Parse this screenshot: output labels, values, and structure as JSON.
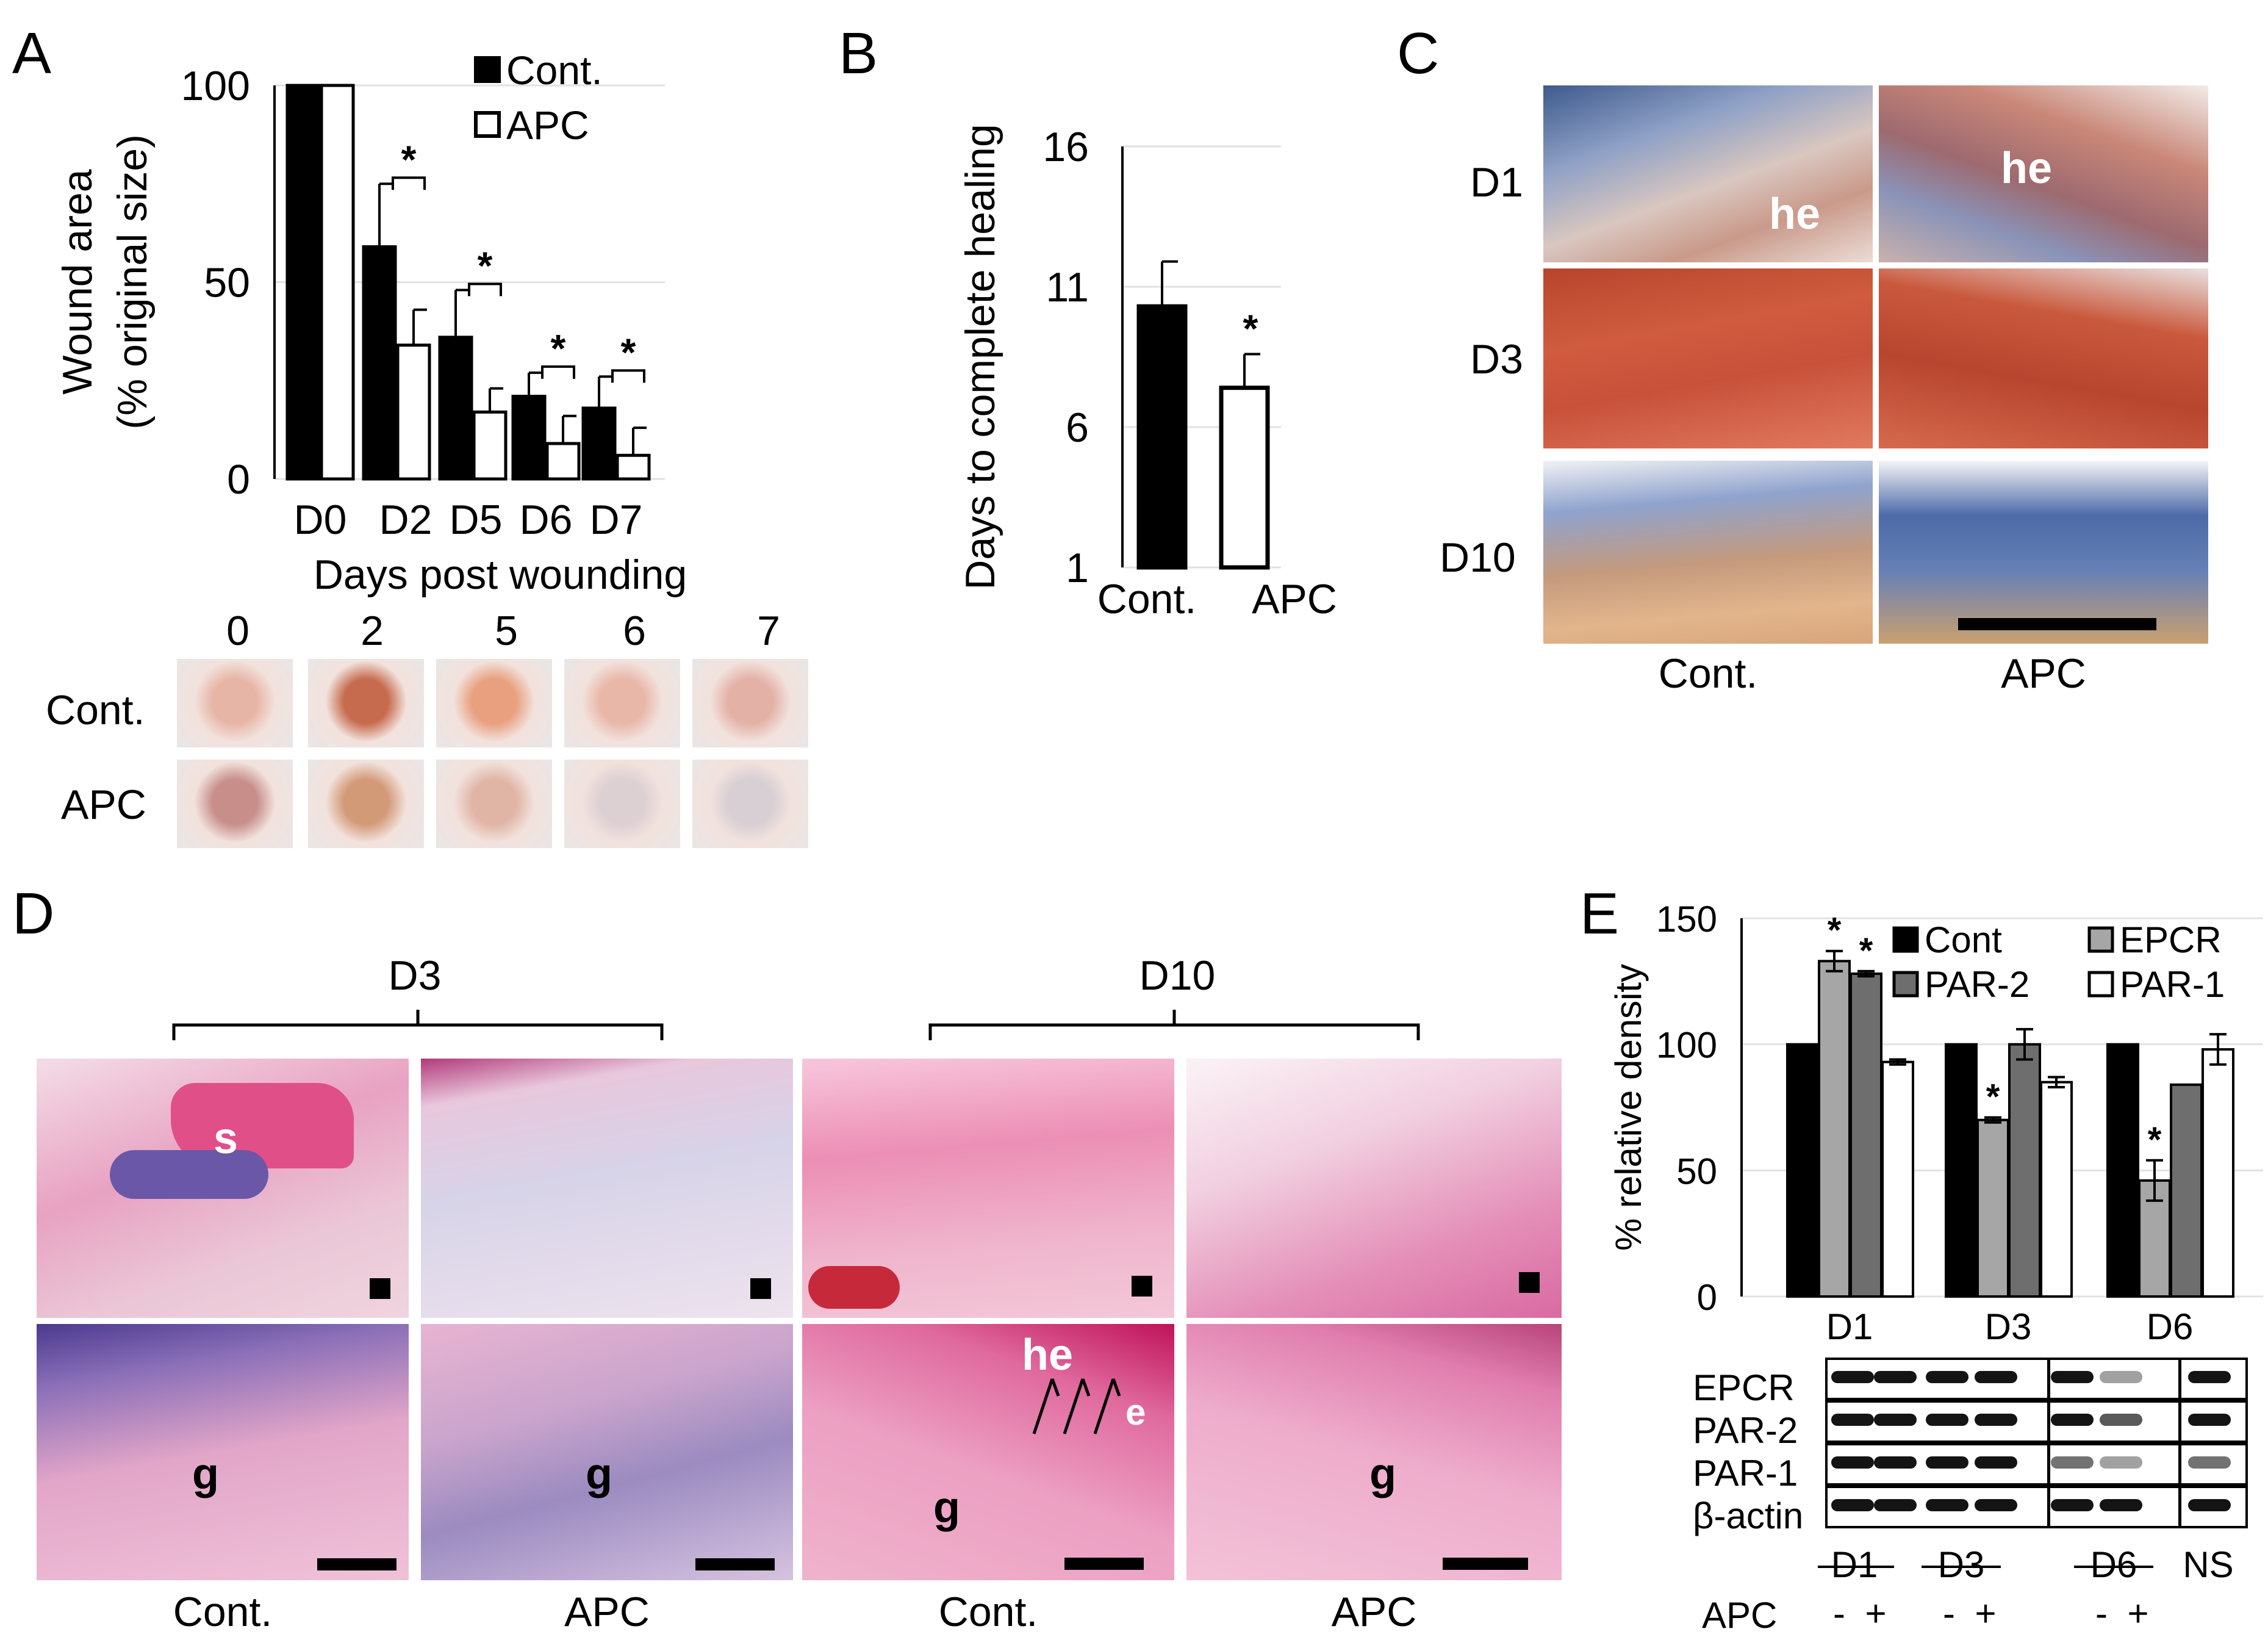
{
  "panels": {
    "A": "A",
    "B": "B",
    "C": "C",
    "D": "D",
    "E": "E"
  },
  "colors": {
    "cont": "#000000",
    "apc": "#ffffff",
    "epcr": "#a6a6a6",
    "par2": "#6e6e6e",
    "par1": "#ffffff"
  },
  "chart_data": [
    {
      "panel": "A",
      "type": "bar",
      "ylabel": "Wound area\n(% original size)",
      "xlabel": "Days post wounding",
      "categories": [
        "D0",
        "D2",
        "D5",
        "D6",
        "D7"
      ],
      "yticks": [
        "0",
        "50",
        "100"
      ],
      "ylim": [
        0,
        100
      ],
      "series": [
        {
          "name": "Cont.",
          "color": "#000000",
          "values": [
            100,
            59,
            36,
            21,
            18
          ],
          "errors": [
            0,
            16,
            12,
            6,
            8
          ]
        },
        {
          "name": "APC",
          "color": "#ffffff",
          "values": [
            100,
            34,
            17,
            9,
            6
          ],
          "errors": [
            0,
            9,
            6,
            7,
            7
          ]
        }
      ],
      "significance": [
        "",
        "*",
        "*",
        "*",
        "*"
      ],
      "legend_position": "top-right",
      "grid": true
    },
    {
      "panel": "B",
      "type": "bar",
      "ylabel": "Days to complete healing",
      "categories": [
        "Cont.",
        "APC"
      ],
      "yticks": [
        "1",
        "6",
        "11",
        "16"
      ],
      "ylim": [
        1,
        16
      ],
      "values": [
        10.3,
        7.4
      ],
      "errors": [
        1.6,
        1.2
      ],
      "colors": [
        "#000000",
        "#ffffff"
      ],
      "significance": [
        "",
        "*"
      ],
      "grid": true
    },
    {
      "panel": "E",
      "type": "bar",
      "ylabel": "% relative density",
      "categories": [
        "D1",
        "D3",
        "D6"
      ],
      "yticks": [
        "0",
        "50",
        "100",
        "150"
      ],
      "ylim": [
        0,
        150
      ],
      "series": [
        {
          "name": "Cont",
          "color": "#000000",
          "values": [
            100,
            100,
            100
          ],
          "errors": [
            0,
            0,
            0
          ]
        },
        {
          "name": "EPCR",
          "color": "#a6a6a6",
          "values": [
            133,
            70,
            46
          ],
          "errors": [
            4,
            1,
            8
          ]
        },
        {
          "name": "PAR-2",
          "color": "#6e6e6e",
          "values": [
            128,
            100,
            84
          ],
          "errors": [
            1,
            6,
            0
          ]
        },
        {
          "name": "PAR-1",
          "color": "#ffffff",
          "values": [
            93,
            85,
            98
          ],
          "errors": [
            1,
            2,
            6
          ]
        }
      ],
      "significance": [
        [
          "",
          "*",
          "*",
          ""
        ],
        [
          "",
          "*",
          "",
          ""
        ],
        [
          "",
          "*",
          "",
          ""
        ]
      ],
      "legend_position": "top",
      "grid": true
    }
  ],
  "panelA_photos": {
    "days": [
      "0",
      "2",
      "5",
      "6",
      "7"
    ],
    "rows": [
      "Cont.",
      "APC"
    ]
  },
  "panelC": {
    "rows": [
      "D1",
      "D3",
      "D10"
    ],
    "cols": [
      "Cont.",
      "APC"
    ],
    "marks": {
      "he": "he"
    }
  },
  "panelD": {
    "groups": [
      "D3",
      "D10"
    ],
    "cols": [
      "Cont.",
      "APC",
      "Cont.",
      "APC"
    ],
    "marks": {
      "s": "s",
      "g": "g",
      "he": "he",
      "e": "e"
    }
  },
  "panelE_blot": {
    "rows": [
      "EPCR",
      "PAR-2",
      "PAR-1",
      "β-actin"
    ],
    "groups": [
      "D1",
      "D3",
      "D6",
      "NS"
    ],
    "apc_label": "APC",
    "apc_signs": [
      "-",
      "+",
      "-",
      "+",
      "-",
      "+"
    ]
  }
}
